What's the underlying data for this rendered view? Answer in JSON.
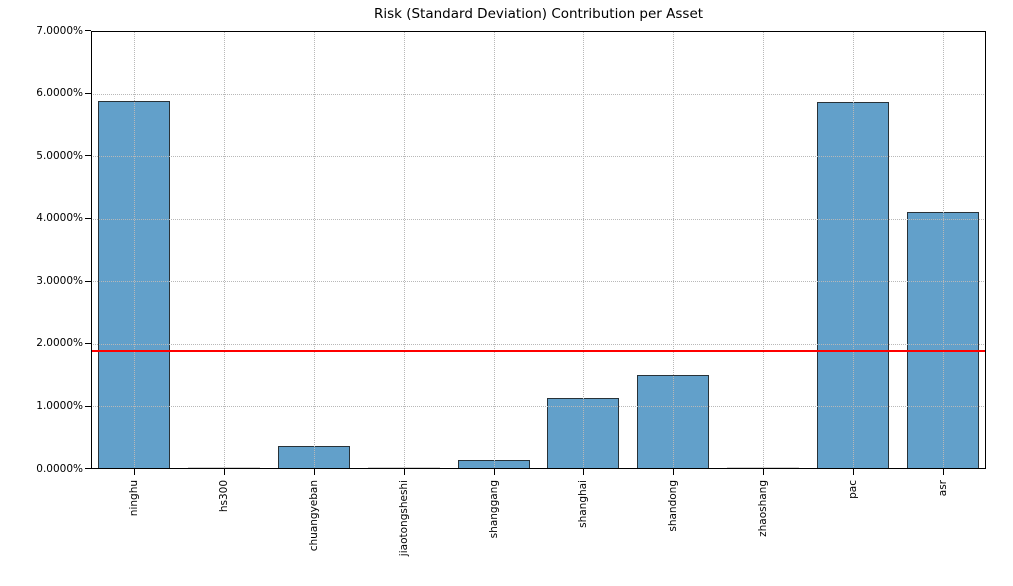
{
  "chart_data": {
    "type": "bar",
    "title": "Risk (Standard Deviation) Contribution per Asset",
    "categories": [
      "ninghu",
      "hs300",
      "chuangyeban",
      "jiaotongsheshi",
      "shanggang",
      "shanghai",
      "shandong",
      "zhaoshang",
      "pac",
      "asr"
    ],
    "values": [
      5.88,
      0.005,
      0.37,
      0.005,
      0.14,
      1.13,
      1.51,
      0.005,
      5.87,
      4.1
    ],
    "unit": "percent",
    "xlabel": "",
    "ylabel": "",
    "ylim": [
      0,
      7
    ],
    "ytick_step": 1,
    "ytick_labels": [
      "0.0000%",
      "1.0000%",
      "2.0000%",
      "3.0000%",
      "4.0000%",
      "5.0000%",
      "6.0000%",
      "7.0000%"
    ],
    "grid": "dotted, both axes, drawn over bars",
    "legend_position": "none",
    "reference_line": {
      "value": 1.89,
      "color": "#ff0000"
    },
    "style": {
      "bar_fill": "#1f77b4",
      "bar_fill_opacity": 0.7,
      "bar_edge": "#1e1e1e",
      "grid_color": "#b8b8b8",
      "background": "#ffffff",
      "text_color": "#000000"
    }
  }
}
